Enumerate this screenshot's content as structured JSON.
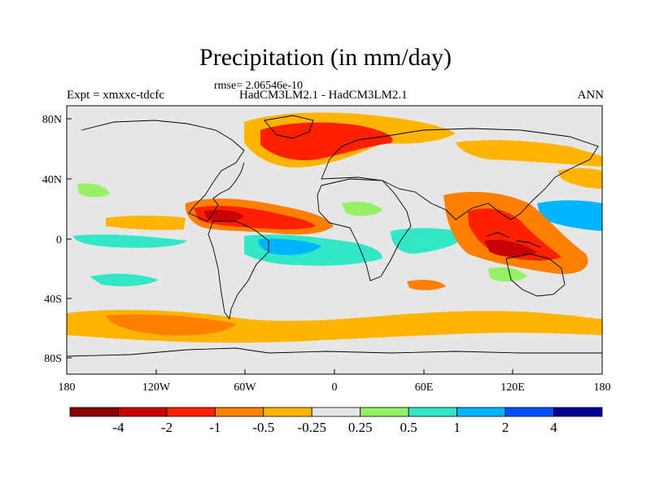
{
  "title": "Precipitation (in mm/day)",
  "rmse": "rmse= 2.06546e-10",
  "experiment": "Expt = xmxxc-tdcfc",
  "models": "HadCM3LM2.1 - HadCM3LM2.1",
  "season": "ANN",
  "axes": {
    "lat_ticks": [
      "80N",
      "40N",
      "0",
      "40S",
      "80S"
    ],
    "lon_ticks": [
      "180",
      "120W",
      "60W",
      "0",
      "60E",
      "120E",
      "180"
    ]
  },
  "colorbar": {
    "colors": [
      "#8b0000",
      "#c80000",
      "#ff2000",
      "#ff7f00",
      "#ffb400",
      "#e6e6e6",
      "#96f064",
      "#32e6c8",
      "#00b4ff",
      "#0050ff",
      "#000096"
    ],
    "labels": [
      "-4",
      "-2",
      "-1",
      "-0.5",
      "-0.25",
      "0.25",
      "0.5",
      "1",
      "2",
      "4"
    ]
  }
}
